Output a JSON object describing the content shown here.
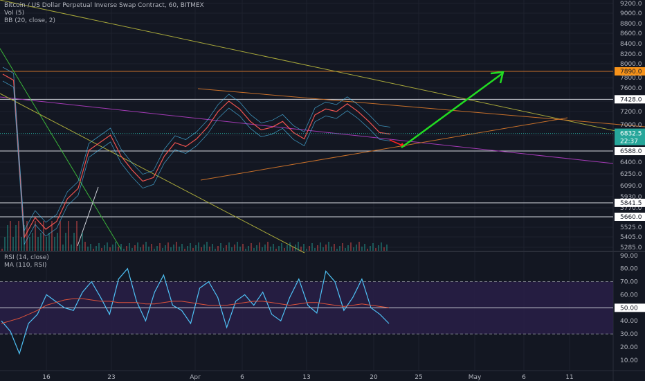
{
  "legend": {
    "title": "Bitcoin / US Dollar Perpetual Inverse Swap Contract, 60, BITMEX",
    "vol": "Vol (5)",
    "bb": "BB (20, close, 2)",
    "rsi": "RSI (14, close)",
    "ma": "MA (110, RSI)"
  },
  "colors": {
    "background": "#131722",
    "grid": "#1e222d",
    "price": "#2962ff",
    "candle_up": "#26a69a",
    "candle_down": "#ef5350",
    "bb": "#4fc3f7",
    "rsi": "#4fc3f7",
    "rsi_ma": "#e0533a",
    "rsi_band": "#2a1f4a",
    "green_arrow": "#22dd22",
    "red_arrow": "#ff2222",
    "orange_line": "#c8702a",
    "purple_line": "#a33ab5",
    "olive_line": "#a8a83a",
    "current_badge": "#26a69a",
    "orange_badge": "#f7931a"
  },
  "chart_data": [
    {
      "type": "candlestick",
      "title": "Bitcoin / US Dollar Perpetual Inverse Swap Contract, 60, BITMEX",
      "y_ticks": [
        9200,
        9000,
        8800,
        8600,
        8400,
        8200,
        8000,
        7800,
        7600,
        7400,
        7200,
        7000,
        6800,
        6600,
        6400,
        6250,
        6090,
        5930,
        5770,
        5660,
        5525,
        5405,
        5285
      ],
      "y_tick_labels": [
        "9200.0",
        "9000.0",
        "8800.0",
        "8600.0",
        "8400.0",
        "8200.0",
        "8000.0",
        "7800.0",
        "7600.0",
        "7400.0",
        "7200.0",
        "7000.0",
        "6800.0",
        "6600.0",
        "6400.0",
        "6250.0",
        "6090.0",
        "5930.0",
        "5770.0",
        "5660.0",
        "5525.0",
        "5405.0",
        "5285.0"
      ],
      "x_ticks": [
        "16",
        "23",
        "Apr",
        "6",
        "13",
        "20",
        "25",
        "May",
        "6",
        "11"
      ],
      "price_close": [
        7850,
        7750,
        5400,
        5650,
        5500,
        5600,
        5900,
        6050,
        6600,
        6700,
        6800,
        6500,
        6300,
        6150,
        6200,
        6500,
        6700,
        6650,
        6750,
        6950,
        7200,
        7400,
        7250,
        7050,
        6900,
        6950,
        7050,
        6850,
        6750,
        7150,
        7250,
        7200,
        7350,
        7200,
        7050,
        6850,
        6820
      ],
      "current_price": "6832.5",
      "countdown": "22:37",
      "horizontal_levels": [
        {
          "value": 7890,
          "label": "7890.0",
          "style": "orange"
        },
        {
          "value": 7428,
          "label": "7428.0",
          "style": "white"
        },
        {
          "value": 6588,
          "label": "6588.0",
          "style": "white"
        },
        {
          "value": 5841.5,
          "label": "5841.5",
          "style": "white"
        },
        {
          "value": 5660,
          "label": "5660.0",
          "style": "white"
        }
      ]
    },
    {
      "type": "line",
      "title": "RSI (14, close)",
      "y_ticks": [
        90,
        80,
        70,
        60,
        50,
        40,
        30,
        20,
        10
      ],
      "y_tick_labels": [
        "90.00",
        "80.00",
        "70.00",
        "60.00",
        "50.00",
        "40.00",
        "30.00",
        "20.00",
        "10.00"
      ],
      "band": [
        30,
        70
      ],
      "level_50_label": "50.00",
      "series": [
        {
          "name": "RSI (14, close)",
          "values": [
            40,
            32,
            15,
            38,
            45,
            60,
            55,
            50,
            48,
            62,
            70,
            58,
            45,
            72,
            80,
            55,
            40,
            62,
            75,
            52,
            48,
            38,
            65,
            70,
            58,
            35,
            55,
            60,
            52,
            62,
            45,
            40,
            58,
            72,
            52,
            46,
            78,
            70,
            48,
            58,
            72,
            50,
            45,
            38
          ]
        },
        {
          "name": "MA (110, RSI)",
          "values": [
            38,
            40,
            42,
            45,
            48,
            52,
            54,
            56,
            57,
            57,
            56,
            55,
            55,
            54,
            54,
            54,
            53,
            53,
            54,
            55,
            55,
            54,
            53,
            52,
            52,
            52,
            53,
            54,
            55,
            55,
            54,
            53,
            52,
            53,
            54,
            54,
            53,
            52,
            51,
            52,
            53,
            52,
            51,
            50
          ]
        }
      ]
    }
  ]
}
